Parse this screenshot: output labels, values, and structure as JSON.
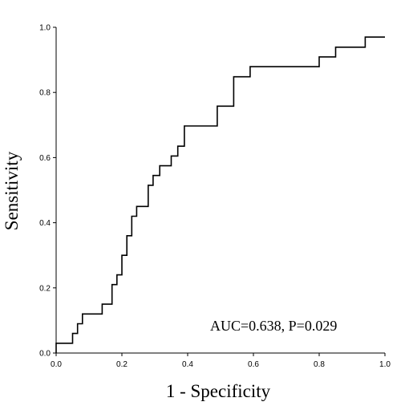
{
  "chart_data": {
    "type": "line",
    "title": "",
    "xlabel": "1 - Specificity",
    "ylabel": "Sensitivity",
    "xlim": [
      0,
      1
    ],
    "ylim": [
      0,
      1
    ],
    "x_ticks": [
      "0.0",
      "0.2",
      "0.4",
      "0.6",
      "0.8",
      "1.0"
    ],
    "y_ticks": [
      "0.0",
      "0.2",
      "0.4",
      "0.6",
      "0.8",
      "1.0"
    ],
    "grid": false,
    "annotation": "AUC=0.638, P=0.029",
    "series": [
      {
        "style": "step",
        "color": "#000000",
        "points": [
          [
            0.0,
            0.0
          ],
          [
            0.0,
            0.03
          ],
          [
            0.05,
            0.03
          ],
          [
            0.05,
            0.06
          ],
          [
            0.065,
            0.06
          ],
          [
            0.065,
            0.09
          ],
          [
            0.08,
            0.09
          ],
          [
            0.08,
            0.12
          ],
          [
            0.14,
            0.12
          ],
          [
            0.14,
            0.15
          ],
          [
            0.17,
            0.15
          ],
          [
            0.17,
            0.21
          ],
          [
            0.185,
            0.21
          ],
          [
            0.185,
            0.24
          ],
          [
            0.2,
            0.24
          ],
          [
            0.2,
            0.3
          ],
          [
            0.215,
            0.3
          ],
          [
            0.215,
            0.36
          ],
          [
            0.23,
            0.36
          ],
          [
            0.23,
            0.42
          ],
          [
            0.245,
            0.42
          ],
          [
            0.245,
            0.45
          ],
          [
            0.28,
            0.45
          ],
          [
            0.28,
            0.515
          ],
          [
            0.295,
            0.515
          ],
          [
            0.295,
            0.545
          ],
          [
            0.315,
            0.545
          ],
          [
            0.315,
            0.575
          ],
          [
            0.35,
            0.575
          ],
          [
            0.35,
            0.605
          ],
          [
            0.37,
            0.605
          ],
          [
            0.37,
            0.635
          ],
          [
            0.39,
            0.635
          ],
          [
            0.39,
            0.697
          ],
          [
            0.49,
            0.697
          ],
          [
            0.49,
            0.758
          ],
          [
            0.54,
            0.758
          ],
          [
            0.54,
            0.848
          ],
          [
            0.59,
            0.848
          ],
          [
            0.59,
            0.879
          ],
          [
            0.8,
            0.879
          ],
          [
            0.8,
            0.909
          ],
          [
            0.85,
            0.909
          ],
          [
            0.85,
            0.939
          ],
          [
            0.94,
            0.939
          ],
          [
            0.94,
            0.97
          ],
          [
            1.0,
            0.97
          ]
        ]
      }
    ]
  }
}
